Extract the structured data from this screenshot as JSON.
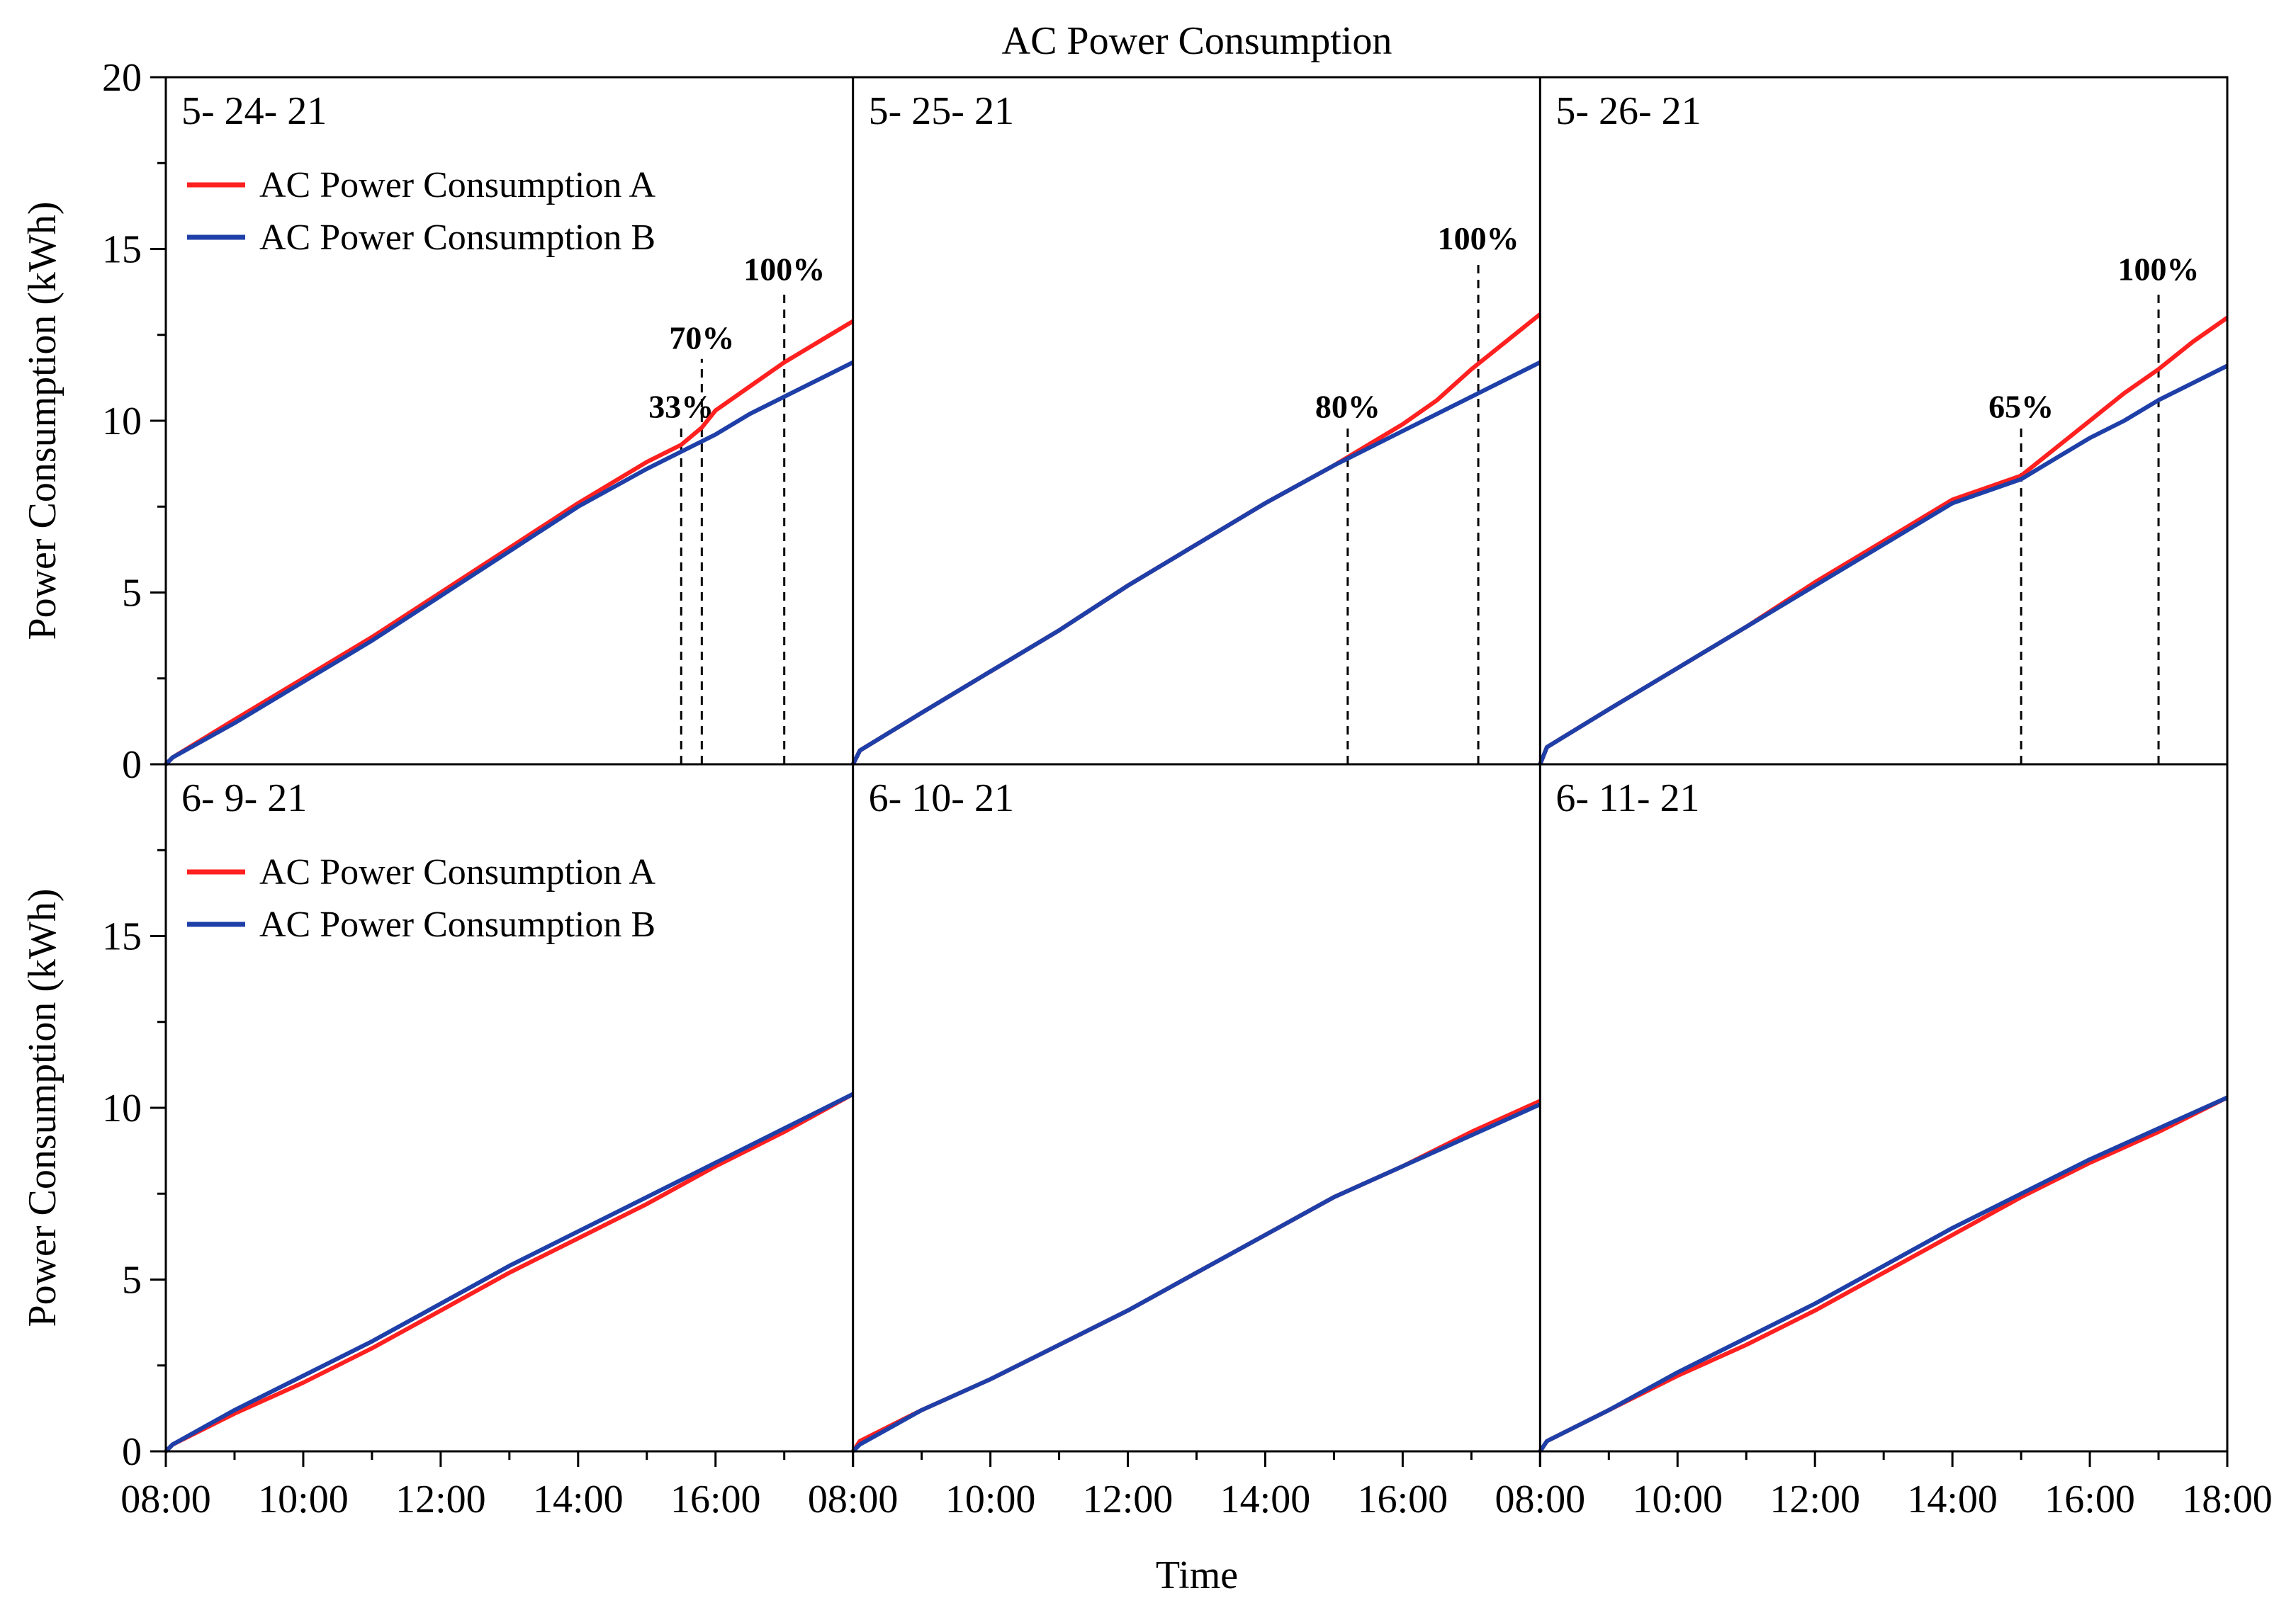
{
  "chart_data": {
    "type": "line",
    "title": "AC Power Consumption",
    "xlabel": "Time",
    "ylabel": "Power Consumption (kWh)",
    "ylim": [
      0,
      20
    ],
    "xlim": [
      8,
      18
    ],
    "yticks": [
      0,
      5,
      10,
      15,
      20
    ],
    "ytick_labels": [
      "0",
      "5",
      "10",
      "15",
      "20"
    ],
    "xticks": [
      8,
      10,
      12,
      14,
      16,
      18
    ],
    "xtick_labels_inner": [
      "08:00",
      "10:00",
      "12:00",
      "14:00",
      "16:00"
    ],
    "xtick_label_last": "18:00",
    "legend": [
      "AC Power Consumption A",
      "AC Power Consumption B"
    ],
    "colors": {
      "A": "#ff2020",
      "B": "#1f3fa8"
    },
    "panels": [
      {
        "label": "5- 24- 21",
        "legend": true,
        "series": [
          {
            "name": "AC Power Consumption A",
            "x": [
              8.1,
              9,
              10,
              11,
              12,
              13,
              14,
              15,
              15.5,
              15.8,
              16,
              16.5,
              17,
              17.5,
              18
            ],
            "values": [
              0.2,
              1.3,
              2.5,
              3.7,
              5.0,
              6.3,
              7.6,
              8.8,
              9.3,
              9.8,
              10.3,
              11.0,
              11.7,
              12.3,
              12.9
            ]
          },
          {
            "name": "AC Power Consumption B",
            "x": [
              8.1,
              9,
              10,
              11,
              12,
              13,
              14,
              15,
              15.5,
              16,
              16.5,
              17,
              17.5,
              18
            ],
            "values": [
              0.2,
              1.2,
              2.4,
              3.6,
              4.9,
              6.2,
              7.5,
              8.6,
              9.1,
              9.6,
              10.2,
              10.7,
              11.2,
              11.7
            ]
          }
        ],
        "markers": [
          {
            "x": 15.5,
            "label": "33%",
            "top": 9.8
          },
          {
            "x": 15.8,
            "label": "70%",
            "top": 11.8
          },
          {
            "x": 17.0,
            "label": "100%",
            "top": 13.8
          }
        ]
      },
      {
        "label": "5- 25- 21",
        "legend": false,
        "series": [
          {
            "name": "AC Power Consumption A",
            "x": [
              8.1,
              9,
              10,
              11,
              12,
              13,
              14,
              15,
              15.5,
              16,
              16.5,
              17,
              17.5,
              18
            ],
            "values": [
              0.4,
              1.5,
              2.7,
              3.9,
              5.2,
              6.4,
              7.6,
              8.7,
              9.3,
              9.9,
              10.6,
              11.5,
              12.3,
              13.1
            ]
          },
          {
            "name": "AC Power Consumption B",
            "x": [
              8.1,
              9,
              10,
              11,
              12,
              13,
              14,
              15,
              15.5,
              16,
              16.5,
              17,
              17.5,
              18
            ],
            "values": [
              0.4,
              1.5,
              2.7,
              3.9,
              5.2,
              6.4,
              7.6,
              8.7,
              9.2,
              9.7,
              10.2,
              10.7,
              11.2,
              11.7
            ]
          }
        ],
        "markers": [
          {
            "x": 15.2,
            "label": "80%",
            "top": 9.8
          },
          {
            "x": 17.1,
            "label": "100%",
            "top": 14.7
          }
        ]
      },
      {
        "label": "5- 26- 21",
        "legend": false,
        "series": [
          {
            "name": "AC Power Consumption A",
            "x": [
              8.1,
              9,
              10,
              11,
              12,
              13,
              14,
              15,
              15.5,
              16,
              16.5,
              17,
              17.5,
              18
            ],
            "values": [
              0.5,
              1.6,
              2.8,
              4.0,
              5.3,
              6.5,
              7.7,
              8.4,
              9.2,
              10.0,
              10.8,
              11.5,
              12.3,
              13.0
            ]
          },
          {
            "name": "AC Power Consumption B",
            "x": [
              8.1,
              9,
              10,
              11,
              12,
              13,
              14,
              15,
              15.5,
              16,
              16.5,
              17,
              17.5,
              18
            ],
            "values": [
              0.5,
              1.6,
              2.8,
              4.0,
              5.2,
              6.4,
              7.6,
              8.3,
              8.9,
              9.5,
              10.0,
              10.6,
              11.1,
              11.6
            ]
          }
        ],
        "markers": [
          {
            "x": 15.0,
            "label": "65%",
            "top": 9.8
          },
          {
            "x": 17.0,
            "label": "100%",
            "top": 13.8
          }
        ]
      },
      {
        "label": "6- 9- 21",
        "legend": true,
        "series": [
          {
            "name": "AC Power Consumption A",
            "x": [
              8.1,
              9,
              10,
              11,
              12,
              13,
              14,
              15,
              16,
              17,
              18
            ],
            "values": [
              0.2,
              1.1,
              2.0,
              3.0,
              4.1,
              5.2,
              6.2,
              7.2,
              8.3,
              9.3,
              10.4
            ]
          },
          {
            "name": "AC Power Consumption B",
            "x": [
              8.1,
              9,
              10,
              11,
              12,
              13,
              14,
              15,
              16,
              17,
              18
            ],
            "values": [
              0.2,
              1.2,
              2.2,
              3.2,
              4.3,
              5.4,
              6.4,
              7.4,
              8.4,
              9.4,
              10.4
            ]
          }
        ],
        "markers": []
      },
      {
        "label": "6- 10- 21",
        "legend": false,
        "series": [
          {
            "name": "AC Power Consumption A",
            "x": [
              8.1,
              9,
              10,
              11,
              12,
              13,
              14,
              15,
              16,
              17,
              18
            ],
            "values": [
              0.3,
              1.2,
              2.1,
              3.1,
              4.1,
              5.2,
              6.3,
              7.4,
              8.3,
              9.3,
              10.2
            ]
          },
          {
            "name": "AC Power Consumption B",
            "x": [
              8.1,
              9,
              10,
              11,
              12,
              13,
              14,
              15,
              16,
              17,
              18
            ],
            "values": [
              0.2,
              1.2,
              2.1,
              3.1,
              4.1,
              5.2,
              6.3,
              7.4,
              8.3,
              9.2,
              10.1
            ]
          }
        ],
        "markers": []
      },
      {
        "label": "6- 11- 21",
        "legend": false,
        "series": [
          {
            "name": "AC Power Consumption A",
            "x": [
              8.1,
              9,
              10,
              11,
              12,
              13,
              14,
              15,
              16,
              17,
              18
            ],
            "values": [
              0.3,
              1.2,
              2.2,
              3.1,
              4.1,
              5.2,
              6.3,
              7.4,
              8.4,
              9.3,
              10.3
            ]
          },
          {
            "name": "AC Power Consumption B",
            "x": [
              8.1,
              9,
              10,
              11,
              12,
              13,
              14,
              15,
              16,
              17,
              18
            ],
            "values": [
              0.3,
              1.2,
              2.3,
              3.3,
              4.3,
              5.4,
              6.5,
              7.5,
              8.5,
              9.4,
              10.3
            ]
          }
        ],
        "markers": []
      }
    ]
  }
}
